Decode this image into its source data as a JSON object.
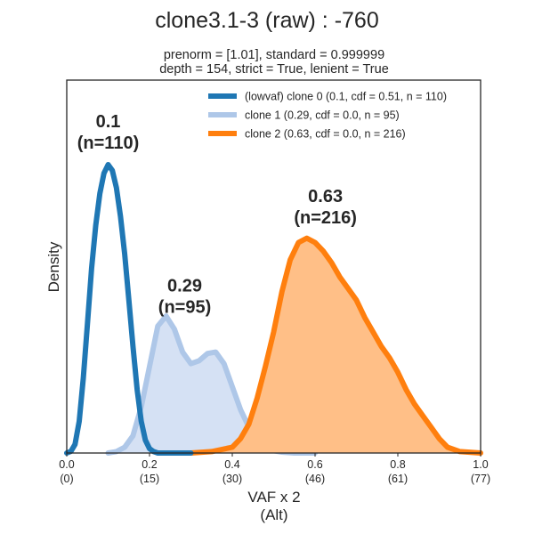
{
  "chart_data": {
    "type": "area",
    "title": "clone3.1-3 (raw) : -760",
    "subtitle_lines": [
      "prenorm = [1.01], standard = 0.999999",
      "depth = 154, strict = True, lenient = True"
    ],
    "xlabel_lines": [
      "VAF x 2",
      "(Alt)"
    ],
    "ylabel": "Density",
    "xlim": [
      0.0,
      1.0
    ],
    "ylim": [
      0,
      1.0
    ],
    "y_ticks_visible": false,
    "grid": false,
    "legend_position": "top-right",
    "x_ticks": [
      {
        "value": 0.0,
        "label": "0.0",
        "sublabel": "(0)"
      },
      {
        "value": 0.2,
        "label": "0.2",
        "sublabel": "(15)"
      },
      {
        "value": 0.4,
        "label": "0.4",
        "sublabel": "(30)"
      },
      {
        "value": 0.6,
        "label": "0.6",
        "sublabel": "(46)"
      },
      {
        "value": 0.8,
        "label": "0.8",
        "sublabel": "(61)"
      },
      {
        "value": 1.0,
        "label": "1.0",
        "sublabel": "(77)"
      }
    ],
    "series": [
      {
        "name": "(lowvaf) clone 0 (0.1, cdf = 0.51, n = 110)",
        "color": "#1f77b4",
        "filled": false,
        "peak_label": [
          "0.1",
          "(n=110)"
        ],
        "peak_label_at": [
          0.1,
          1.13
        ],
        "x": [
          0.0,
          0.01,
          0.02,
          0.03,
          0.04,
          0.05,
          0.06,
          0.07,
          0.08,
          0.09,
          0.1,
          0.11,
          0.12,
          0.13,
          0.14,
          0.15,
          0.16,
          0.17,
          0.18,
          0.19,
          0.2,
          0.21,
          0.22,
          0.23,
          0.24,
          0.26,
          0.3
        ],
        "y": [
          0.0,
          0.006,
          0.03,
          0.11,
          0.26,
          0.45,
          0.64,
          0.79,
          0.9,
          0.97,
          1.0,
          0.98,
          0.92,
          0.82,
          0.69,
          0.53,
          0.37,
          0.22,
          0.11,
          0.045,
          0.015,
          0.005,
          0.0,
          0.0,
          0.0,
          0.0,
          0.0
        ]
      },
      {
        "name": "clone 1 (0.29, cdf = 0.0, n = 95)",
        "color": "#aec7e8",
        "fill_color": "#d5e1f4",
        "filled": true,
        "peak_label": [
          "0.29",
          "(n=95)"
        ],
        "peak_label_at": [
          0.285,
          0.56
        ],
        "x": [
          0.1,
          0.12,
          0.14,
          0.16,
          0.18,
          0.2,
          0.22,
          0.24,
          0.26,
          0.28,
          0.3,
          0.32,
          0.34,
          0.36,
          0.38,
          0.4,
          0.42,
          0.44,
          0.46,
          0.48,
          0.5,
          0.52,
          0.55,
          0.6
        ],
        "y": [
          0.0,
          0.005,
          0.02,
          0.06,
          0.16,
          0.3,
          0.44,
          0.475,
          0.43,
          0.35,
          0.31,
          0.32,
          0.345,
          0.35,
          0.31,
          0.23,
          0.15,
          0.09,
          0.045,
          0.02,
          0.008,
          0.003,
          0.0,
          0.0
        ]
      },
      {
        "name": "clone 2 (0.63, cdf = 0.0, n = 216)",
        "color": "#ff7f0e",
        "fill_color": "#ffbf87",
        "filled": true,
        "peak_label": [
          "0.63",
          "(n=216)"
        ],
        "peak_label_at": [
          0.625,
          0.87
        ],
        "x": [
          0.3,
          0.35,
          0.4,
          0.42,
          0.44,
          0.46,
          0.48,
          0.5,
          0.52,
          0.54,
          0.56,
          0.58,
          0.6,
          0.62,
          0.64,
          0.66,
          0.68,
          0.7,
          0.72,
          0.74,
          0.76,
          0.78,
          0.8,
          0.82,
          0.84,
          0.86,
          0.88,
          0.9,
          0.92,
          0.95,
          1.0
        ],
        "y": [
          0.0,
          0.005,
          0.02,
          0.05,
          0.1,
          0.19,
          0.3,
          0.42,
          0.56,
          0.67,
          0.73,
          0.745,
          0.73,
          0.7,
          0.66,
          0.61,
          0.57,
          0.53,
          0.47,
          0.42,
          0.37,
          0.33,
          0.28,
          0.22,
          0.17,
          0.13,
          0.09,
          0.05,
          0.02,
          0.005,
          0.0
        ]
      }
    ]
  }
}
